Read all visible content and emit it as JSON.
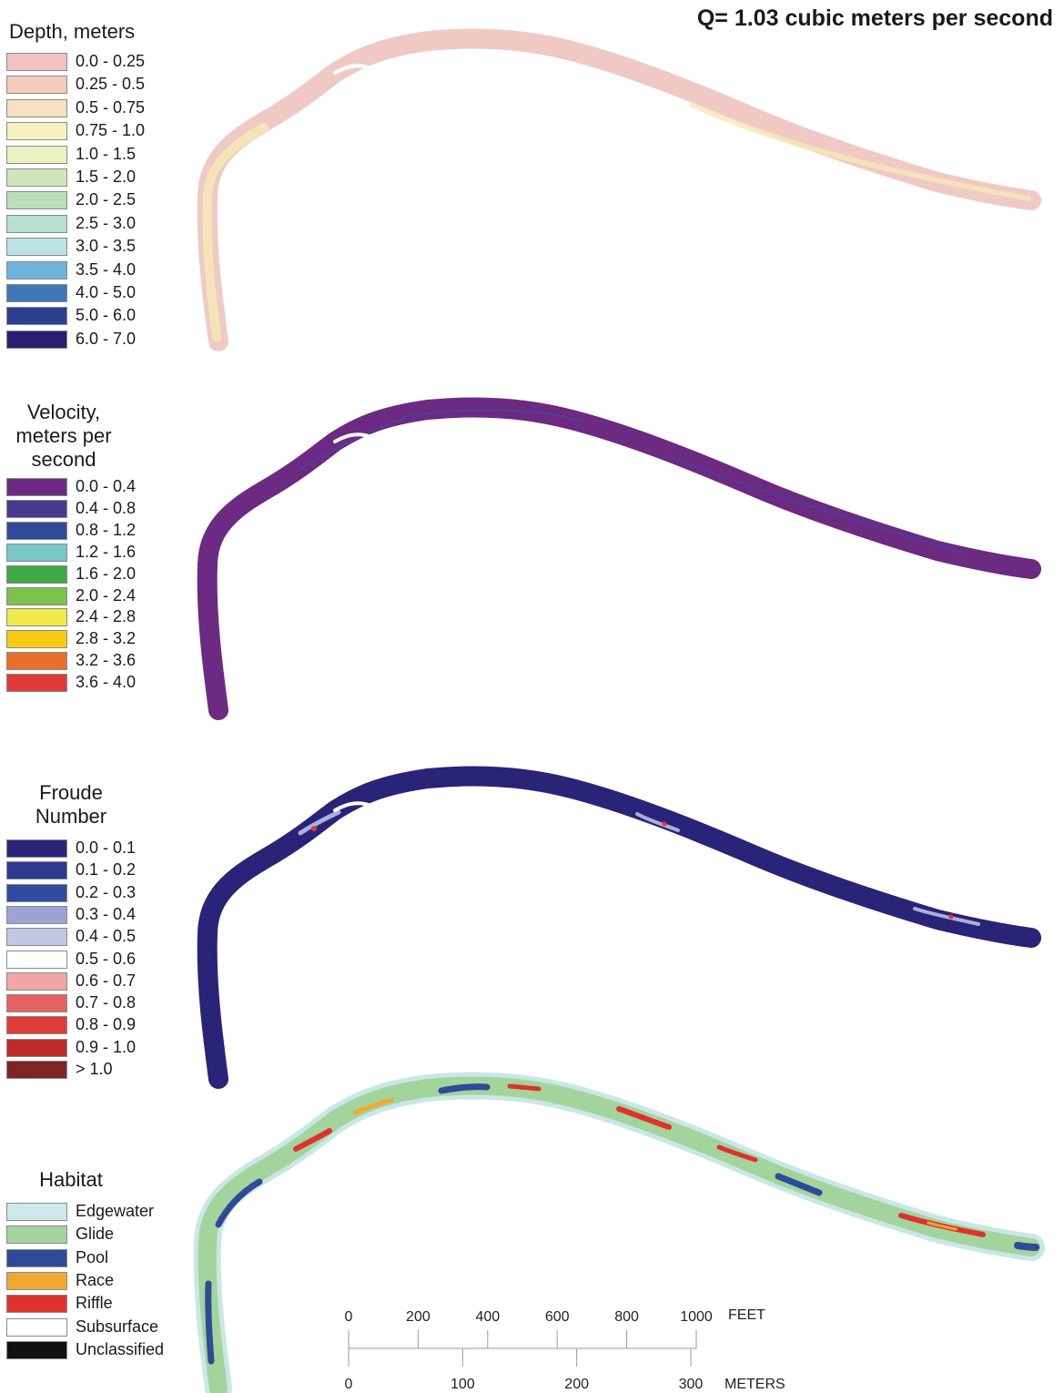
{
  "title": "Q= 1.03 cubic meters per second",
  "panels": [
    {
      "id": "depth",
      "legend_title": "Depth, meters",
      "river_color": "#f0c9c4",
      "accent_color": "#f6e7b8",
      "classes": [
        {
          "label": "0.0 - 0.25",
          "color": "#f3c2c2"
        },
        {
          "label": "0.25 - 0.5",
          "color": "#f4cbbb"
        },
        {
          "label": "0.5 - 0.75",
          "color": "#f5e1c0"
        },
        {
          "label": "0.75 - 1.0",
          "color": "#f6f2bd"
        },
        {
          "label": "1.0 - 1.5",
          "color": "#e8f2c2"
        },
        {
          "label": "1.5 - 2.0",
          "color": "#cfe6bd"
        },
        {
          "label": "2.0 - 2.5",
          "color": "#b9dfba"
        },
        {
          "label": "2.5 - 3.0",
          "color": "#b8e0cf"
        },
        {
          "label": "3.0 - 3.5",
          "color": "#bde1e7"
        },
        {
          "label": "3.5 - 4.0",
          "color": "#6fb3dc"
        },
        {
          "label": "4.0 - 5.0",
          "color": "#4277b6"
        },
        {
          "label": "5.0 - 6.0",
          "color": "#2d3f8e"
        },
        {
          "label": "6.0 - 7.0",
          "color": "#2a1f6e"
        }
      ]
    },
    {
      "id": "velocity",
      "legend_title": "Velocity,\nmeters per\nsecond",
      "river_color": "#6d2a82",
      "accent_color": "#3d4ba0",
      "classes": [
        {
          "label": "0.0 - 0.4",
          "color": "#6d2a82"
        },
        {
          "label": "0.4 - 0.8",
          "color": "#4a3a8e"
        },
        {
          "label": "0.8 - 1.2",
          "color": "#2f4a9a"
        },
        {
          "label": "1.2 - 1.6",
          "color": "#78c6c8"
        },
        {
          "label": "1.6 - 2.0",
          "color": "#3fa94a"
        },
        {
          "label": "2.0 - 2.4",
          "color": "#7cc24f"
        },
        {
          "label": "2.4 - 2.8",
          "color": "#eeea4a"
        },
        {
          "label": "2.8 - 3.2",
          "color": "#f5cb10"
        },
        {
          "label": "3.2 - 3.6",
          "color": "#e8702a"
        },
        {
          "label": "3.6 - 4.0",
          "color": "#e03a38"
        }
      ]
    },
    {
      "id": "froude",
      "legend_title": "Froude\nNumber",
      "river_color": "#2a2478",
      "accent_color": "#a9b0dc",
      "classes": [
        {
          "label": "0.0 - 0.1",
          "color": "#2a2478"
        },
        {
          "label": "0.1 - 0.2",
          "color": "#2e3a8e"
        },
        {
          "label": "0.2 - 0.3",
          "color": "#2f4d9e"
        },
        {
          "label": "0.3 - 0.4",
          "color": "#9fa3d4"
        },
        {
          "label": "0.4 - 0.5",
          "color": "#c1c5e6"
        },
        {
          "label": "0.5 - 0.6",
          "color": "#ffffff"
        },
        {
          "label": "0.6 - 0.7",
          "color": "#f1a6a6"
        },
        {
          "label": "0.7 - 0.8",
          "color": "#e66262"
        },
        {
          "label": "0.8 - 0.9",
          "color": "#e23a36"
        },
        {
          "label": "0.9 - 1.0",
          "color": "#bf2a2a"
        },
        {
          "label": "> 1.0",
          "color": "#7e2428"
        }
      ]
    },
    {
      "id": "habitat",
      "legend_title": "Habitat",
      "river_color": "#a3d49c",
      "accent_color": "#c9e7e6",
      "classes": [
        {
          "label": "Edgewater",
          "color": "#cde8e8"
        },
        {
          "label": "Glide",
          "color": "#a3d49c"
        },
        {
          "label": "Pool",
          "color": "#2e4a98"
        },
        {
          "label": "Race",
          "color": "#f0a830"
        },
        {
          "label": "Riffle",
          "color": "#e0312e"
        },
        {
          "label": "Subsurface",
          "color": "#ffffff"
        },
        {
          "label": "Unclassified",
          "color": "#111111"
        }
      ]
    }
  ],
  "scale": {
    "feet_unit": "FEET",
    "feet_ticks": [
      "0",
      "200",
      "400",
      "600",
      "800",
      "1000"
    ],
    "meters_unit": "METERS",
    "meters_ticks": [
      "0",
      "100",
      "200",
      "300"
    ]
  }
}
